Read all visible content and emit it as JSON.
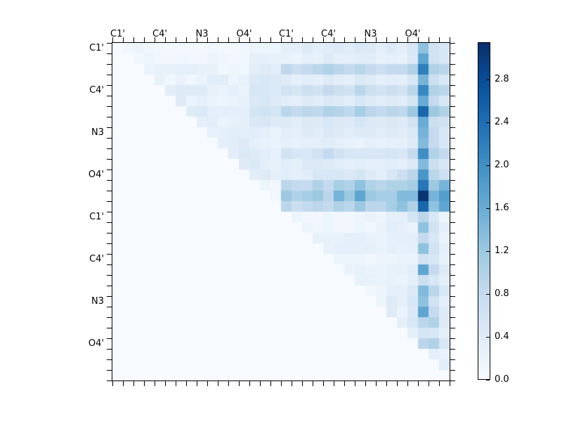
{
  "figure": {
    "background_color": "#ffffff",
    "text_color": "#000000",
    "axis_color": "#000000"
  },
  "chart_data": {
    "type": "heatmap",
    "title": "",
    "colormap": "Blues",
    "colormap_stops": [
      "#f7fbff",
      "#deebf7",
      "#c6dbef",
      "#9ecae1",
      "#6baed6",
      "#4292c6",
      "#2171b5",
      "#08519c",
      "#08306b"
    ],
    "vmin": 0.0,
    "vmax": 3.15,
    "grid": false,
    "n_cells": 32,
    "x_tick_labels": [
      "C1'",
      "C4'",
      "N3",
      "O4'",
      "C1'",
      "C4'",
      "N3",
      "O4'"
    ],
    "y_tick_labels": [
      "C1'",
      "C4'",
      "N3",
      "O4'",
      "C1'",
      "C4'",
      "N3",
      "O4'"
    ],
    "label_cell_positions": [
      0,
      4,
      8,
      12,
      16,
      20,
      24,
      28
    ],
    "colorbar": {
      "tick_labels": [
        "0.0",
        "0.4",
        "0.8",
        "1.2",
        "1.6",
        "2.0",
        "2.4",
        "2.8"
      ],
      "tick_values": [
        0.0,
        0.4,
        0.8,
        1.2,
        1.6,
        2.0,
        2.4,
        2.8
      ],
      "position": "right"
    },
    "matrix": [
      [
        0,
        0.1,
        0.15,
        0.1,
        0.08,
        0.08,
        0.1,
        0.08,
        0.08,
        0.1,
        0.08,
        0.08,
        0.1,
        0.15,
        0.15,
        0.15,
        0.3,
        0.3,
        0.4,
        0.3,
        0.35,
        0.4,
        0.35,
        0.45,
        0.4,
        0.3,
        0.4,
        0.3,
        0.5,
        1.3,
        0.6,
        0.5
      ],
      [
        0,
        0,
        0.1,
        0.15,
        0.1,
        0.1,
        0.12,
        0.1,
        0.1,
        0.15,
        0.12,
        0.1,
        0.1,
        0.3,
        0.3,
        0.25,
        0.25,
        0.2,
        0.3,
        0.25,
        0.4,
        0.3,
        0.3,
        0.35,
        0.35,
        0.25,
        0.3,
        0.25,
        0.45,
        1.7,
        0.6,
        0.5
      ],
      [
        0,
        0,
        0,
        0.2,
        0.25,
        0.25,
        0.3,
        0.3,
        0.25,
        0.25,
        0.1,
        0.15,
        0.12,
        0.35,
        0.4,
        0.35,
        0.85,
        0.7,
        0.8,
        0.9,
        1.0,
        0.9,
        0.8,
        0.9,
        0.8,
        0.7,
        0.8,
        0.8,
        1.0,
        2.2,
        1.0,
        0.9
      ],
      [
        0,
        0,
        0,
        0,
        0.25,
        0.12,
        0.2,
        0.12,
        0.2,
        0.35,
        0.35,
        0.15,
        0.25,
        0.45,
        0.5,
        0.45,
        0.4,
        0.3,
        0.35,
        0.3,
        0.4,
        0.35,
        0.3,
        0.45,
        0.4,
        0.3,
        0.35,
        0.3,
        0.5,
        1.5,
        0.7,
        0.5
      ],
      [
        0,
        0,
        0,
        0,
        0,
        0.35,
        0.4,
        0.4,
        0.4,
        0.25,
        0.2,
        0.3,
        0.2,
        0.5,
        0.5,
        0.45,
        0.6,
        0.55,
        0.7,
        0.6,
        0.8,
        0.7,
        0.6,
        0.9,
        0.7,
        0.6,
        0.7,
        0.6,
        0.9,
        2.1,
        1.0,
        0.9
      ],
      [
        0,
        0,
        0,
        0,
        0,
        0,
        0.4,
        0.2,
        0.3,
        0.2,
        0.15,
        0.2,
        0.25,
        0.45,
        0.5,
        0.4,
        0.35,
        0.3,
        0.4,
        0.35,
        0.45,
        0.4,
        0.35,
        0.5,
        0.4,
        0.35,
        0.4,
        0.35,
        0.55,
        1.6,
        0.8,
        0.5
      ],
      [
        0,
        0,
        0,
        0,
        0,
        0,
        0,
        0.4,
        0.45,
        0.3,
        0.3,
        0.3,
        0.3,
        0.55,
        0.6,
        0.55,
        0.9,
        0.8,
        0.9,
        0.85,
        1.0,
        0.95,
        0.85,
        1.1,
        0.9,
        0.8,
        0.9,
        0.85,
        1.2,
        2.5,
        1.2,
        1.0
      ],
      [
        0,
        0,
        0,
        0,
        0,
        0,
        0,
        0,
        0.3,
        0.35,
        0.2,
        0.25,
        0.3,
        0.45,
        0.5,
        0.4,
        0.4,
        0.35,
        0.45,
        0.4,
        0.5,
        0.45,
        0.4,
        0.55,
        0.45,
        0.4,
        0.45,
        0.4,
        0.6,
        1.6,
        0.7,
        0.6
      ],
      [
        0,
        0,
        0,
        0,
        0,
        0,
        0,
        0,
        0,
        0.25,
        0.3,
        0.35,
        0.3,
        0.35,
        0.3,
        0.2,
        0.35,
        0.3,
        0.4,
        0.35,
        0.45,
        0.4,
        0.35,
        0.4,
        0.4,
        0.35,
        0.4,
        0.35,
        0.45,
        1.5,
        0.8,
        0.5
      ],
      [
        0,
        0,
        0,
        0,
        0,
        0,
        0,
        0,
        0,
        0,
        0.3,
        0.35,
        0.4,
        0.3,
        0.25,
        0.2,
        0.3,
        0.25,
        0.3,
        0.3,
        0.35,
        0.3,
        0.25,
        0.2,
        0.3,
        0.25,
        0.3,
        0.3,
        0.4,
        1.4,
        0.8,
        0.5
      ],
      [
        0,
        0,
        0,
        0,
        0,
        0,
        0,
        0,
        0,
        0,
        0,
        0.35,
        0.45,
        0.4,
        0.35,
        0.25,
        0.6,
        0.5,
        0.5,
        0.6,
        0.8,
        0.6,
        0.5,
        0.5,
        0.5,
        0.5,
        0.55,
        0.5,
        0.8,
        2.0,
        1.0,
        0.8
      ],
      [
        0,
        0,
        0,
        0,
        0,
        0,
        0,
        0,
        0,
        0,
        0,
        0,
        0.4,
        0.45,
        0.3,
        0.25,
        0.35,
        0.3,
        0.45,
        0.45,
        0.4,
        0.35,
        0.3,
        0.35,
        0.3,
        0.3,
        0.35,
        0.3,
        0.45,
        1.4,
        0.7,
        0.5
      ],
      [
        0,
        0,
        0,
        0,
        0,
        0,
        0,
        0,
        0,
        0,
        0,
        0,
        0,
        0.35,
        0.4,
        0.3,
        0.35,
        0.3,
        0.35,
        0.5,
        0.5,
        0.5,
        0.45,
        0.55,
        0.4,
        0.3,
        0.5,
        0.7,
        0.9,
        1.9,
        0.9,
        0.7
      ],
      [
        0,
        0,
        0,
        0,
        0,
        0,
        0,
        0,
        0,
        0,
        0,
        0,
        0,
        0,
        0.15,
        0.1,
        0.9,
        0.8,
        0.8,
        1.0,
        0.8,
        1.1,
        1.0,
        1.3,
        1.0,
        0.9,
        1.0,
        1.0,
        1.1,
        2.3,
        1.2,
        1.5
      ],
      [
        0,
        0,
        0,
        0,
        0,
        0,
        0,
        0,
        0,
        0,
        0,
        0,
        0,
        0,
        0,
        0.1,
        1.2,
        1.0,
        1.1,
        1.2,
        0.9,
        1.5,
        1.2,
        1.7,
        1.2,
        1.1,
        1.1,
        1.4,
        1.4,
        3.1,
        1.5,
        1.8
      ],
      [
        0,
        0,
        0,
        0,
        0,
        0,
        0,
        0,
        0,
        0,
        0,
        0,
        0,
        0,
        0,
        0,
        0.9,
        0.7,
        0.8,
        0.9,
        0.8,
        1.0,
        0.9,
        1.2,
        0.9,
        0.9,
        1.1,
        1.3,
        1.0,
        2.5,
        1.3,
        1.7
      ],
      [
        0,
        0,
        0,
        0,
        0,
        0,
        0,
        0,
        0,
        0,
        0,
        0,
        0,
        0,
        0,
        0,
        0,
        0.15,
        0.1,
        0.1,
        0.15,
        0.1,
        0.1,
        0.15,
        0.2,
        0.15,
        0.3,
        0.3,
        0.55,
        0.9,
        0.5,
        0.15
      ],
      [
        0,
        0,
        0,
        0,
        0,
        0,
        0,
        0,
        0,
        0,
        0,
        0,
        0,
        0,
        0,
        0,
        0,
        0,
        0.15,
        0.1,
        0.15,
        0.1,
        0.1,
        0.15,
        0.1,
        0.2,
        0.35,
        0.3,
        0.2,
        1.3,
        0.6,
        0.3
      ],
      [
        0,
        0,
        0,
        0,
        0,
        0,
        0,
        0,
        0,
        0,
        0,
        0,
        0,
        0,
        0,
        0,
        0,
        0,
        0,
        0.25,
        0.25,
        0.25,
        0.3,
        0.3,
        0.25,
        0.2,
        0.3,
        0.3,
        0.3,
        0.8,
        0.5,
        0.2
      ],
      [
        0,
        0,
        0,
        0,
        0,
        0,
        0,
        0,
        0,
        0,
        0,
        0,
        0,
        0,
        0,
        0,
        0,
        0,
        0,
        0,
        0.25,
        0.3,
        0.3,
        0.3,
        0.3,
        0.2,
        0.3,
        0.25,
        0.3,
        1.3,
        0.6,
        0.3
      ],
      [
        0,
        0,
        0,
        0,
        0,
        0,
        0,
        0,
        0,
        0,
        0,
        0,
        0,
        0,
        0,
        0,
        0,
        0,
        0,
        0,
        0,
        0.15,
        0.15,
        0.15,
        0.1,
        0.15,
        0.15,
        0.2,
        0.2,
        0.6,
        0.5,
        0.25
      ],
      [
        0,
        0,
        0,
        0,
        0,
        0,
        0,
        0,
        0,
        0,
        0,
        0,
        0,
        0,
        0,
        0,
        0,
        0,
        0,
        0,
        0,
        0,
        0.2,
        0.25,
        0.2,
        0.2,
        0.25,
        0.25,
        0.35,
        1.7,
        0.8,
        0.4
      ],
      [
        0,
        0,
        0,
        0,
        0,
        0,
        0,
        0,
        0,
        0,
        0,
        0,
        0,
        0,
        0,
        0,
        0,
        0,
        0,
        0,
        0,
        0,
        0,
        0.25,
        0.25,
        0.2,
        0.25,
        0.2,
        0.3,
        0.7,
        0.5,
        0.3
      ],
      [
        0,
        0,
        0,
        0,
        0,
        0,
        0,
        0,
        0,
        0,
        0,
        0,
        0,
        0,
        0,
        0,
        0,
        0,
        0,
        0,
        0,
        0,
        0,
        0,
        0.1,
        0.15,
        0.3,
        0.3,
        0.45,
        1.4,
        0.9,
        0.5
      ],
      [
        0,
        0,
        0,
        0,
        0,
        0,
        0,
        0,
        0,
        0,
        0,
        0,
        0,
        0,
        0,
        0,
        0,
        0,
        0,
        0,
        0,
        0,
        0,
        0,
        0,
        0.15,
        0.4,
        0.3,
        0.5,
        1.3,
        0.6,
        0.3
      ],
      [
        0,
        0,
        0,
        0,
        0,
        0,
        0,
        0,
        0,
        0,
        0,
        0,
        0,
        0,
        0,
        0,
        0,
        0,
        0,
        0,
        0,
        0,
        0,
        0,
        0,
        0,
        0.4,
        0.2,
        0.45,
        1.7,
        0.8,
        0.4
      ],
      [
        0,
        0,
        0,
        0,
        0,
        0,
        0,
        0,
        0,
        0,
        0,
        0,
        0,
        0,
        0,
        0,
        0,
        0,
        0,
        0,
        0,
        0,
        0,
        0,
        0,
        0,
        0,
        0.3,
        0.5,
        0.9,
        1.0,
        0.4
      ],
      [
        0,
        0,
        0,
        0,
        0,
        0,
        0,
        0,
        0,
        0,
        0,
        0,
        0,
        0,
        0,
        0,
        0,
        0,
        0,
        0,
        0,
        0,
        0,
        0,
        0,
        0,
        0,
        0,
        0.3,
        0.55,
        0.5,
        0.3
      ],
      [
        0,
        0,
        0,
        0,
        0,
        0,
        0,
        0,
        0,
        0,
        0,
        0,
        0,
        0,
        0,
        0,
        0,
        0,
        0,
        0,
        0,
        0,
        0,
        0,
        0,
        0,
        0,
        0,
        0,
        0.9,
        1.0,
        0.5
      ],
      [
        0,
        0,
        0,
        0,
        0,
        0,
        0,
        0,
        0,
        0,
        0,
        0,
        0,
        0,
        0,
        0,
        0,
        0,
        0,
        0,
        0,
        0,
        0,
        0,
        0,
        0,
        0,
        0,
        0,
        0,
        0.3,
        0.2
      ],
      [
        0,
        0,
        0,
        0,
        0,
        0,
        0,
        0,
        0,
        0,
        0,
        0,
        0,
        0,
        0,
        0,
        0,
        0,
        0,
        0,
        0,
        0,
        0,
        0,
        0,
        0,
        0,
        0,
        0,
        0,
        0,
        0.35
      ],
      [
        0,
        0,
        0,
        0,
        0,
        0,
        0,
        0,
        0,
        0,
        0,
        0,
        0,
        0,
        0,
        0,
        0,
        0,
        0,
        0,
        0,
        0,
        0,
        0,
        0,
        0,
        0,
        0,
        0,
        0,
        0,
        0
      ]
    ]
  }
}
